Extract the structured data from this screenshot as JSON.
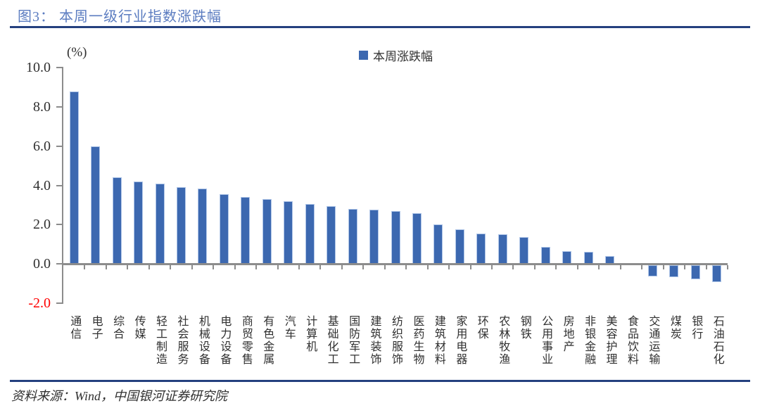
{
  "figure": {
    "title": "图3： 本周一级行业指数涨跌幅",
    "source": "资料来源：Wind，中国银河证券研究院"
  },
  "chart_data": {
    "type": "bar",
    "title": "本周一级行业指数涨跌幅",
    "unit_label": "(%)",
    "legend": "本周涨跌幅",
    "legend_position": "top-center",
    "grid": false,
    "categories": [
      "通信",
      "电子",
      "综合",
      "传媒",
      "轻工制造",
      "社会服务",
      "机械设备",
      "电力设备",
      "商贸零售",
      "有色金属",
      "汽车",
      "计算机",
      "基础化工",
      "国防军工",
      "建筑装饰",
      "纺织服饰",
      "医药生物",
      "建筑材料",
      "家用电器",
      "环保",
      "农林牧渔",
      "钢铁",
      "公用事业",
      "房地产",
      "非银金融",
      "美容护理",
      "食品饮料",
      "交通运输",
      "煤炭",
      "银行",
      "石油石化"
    ],
    "values": [
      8.8,
      6.0,
      4.4,
      4.2,
      4.1,
      3.9,
      3.85,
      3.55,
      3.4,
      3.3,
      3.2,
      3.05,
      2.95,
      2.8,
      2.75,
      2.7,
      2.6,
      2.0,
      1.75,
      1.55,
      1.5,
      1.35,
      0.85,
      0.65,
      0.6,
      0.4,
      0.05,
      -0.5,
      -0.55,
      -0.65,
      -0.8
    ],
    "ylabel": "",
    "xlabel": "",
    "ylim": [
      -2.0,
      10.0
    ],
    "ytick_step": 2.0,
    "yticks": [
      "10.0",
      "8.0",
      "6.0",
      "4.0",
      "2.0",
      "0.0",
      "-2.0"
    ],
    "colors": {
      "bar_fill": "#3C68B0",
      "bar_border": "#B0C6E8",
      "axis": "#8C8C8C",
      "text": "#303030",
      "title_text": "#5B7CC0",
      "rule": "#24407F",
      "negative_tick_label": "#FF0000"
    }
  }
}
